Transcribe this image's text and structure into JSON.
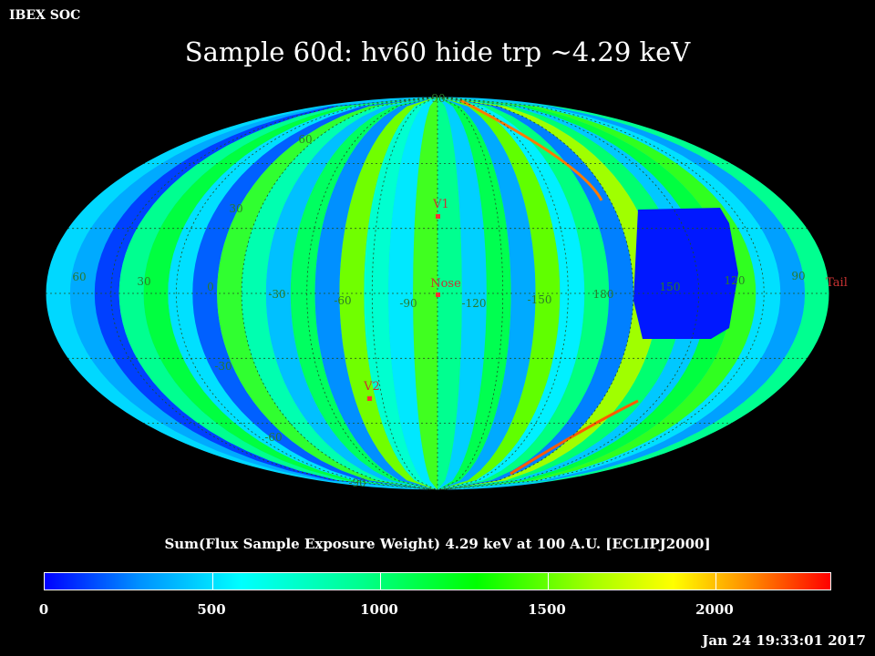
{
  "header": {
    "org": "IBEX SOC",
    "title": "Sample 60d: hv60 hide trp ~4.29 keV"
  },
  "map": {
    "projection": "Mollweide (Hammer-Aitoff style)",
    "longitude_labels": [
      "60",
      "30",
      "0",
      "-30",
      "-60",
      "-90",
      "-120",
      "-150",
      "180",
      "150",
      "120",
      "90"
    ],
    "latitude_labels": [
      "90",
      "60",
      "30",
      "-30",
      "-60",
      "-90"
    ],
    "markers": [
      {
        "name": "V1",
        "color": "#ff3030"
      },
      {
        "name": "Nose",
        "color": "#ff3030"
      },
      {
        "name": "V2",
        "color": "#ff3030"
      },
      {
        "name": "Tail",
        "color": "#ff3030"
      }
    ],
    "grid_color": "#2a5a2a"
  },
  "colorbar": {
    "title": "Sum(Flux Sample Exposure Weight)  4.29 keV at 100 A.U. [ECLIPJ2000]",
    "ticks": [
      "0",
      "500",
      "1000",
      "1500",
      "2000"
    ],
    "range": [
      0,
      2350
    ]
  },
  "footer": {
    "timestamp": "Jan 24 19:33:01 2017"
  }
}
